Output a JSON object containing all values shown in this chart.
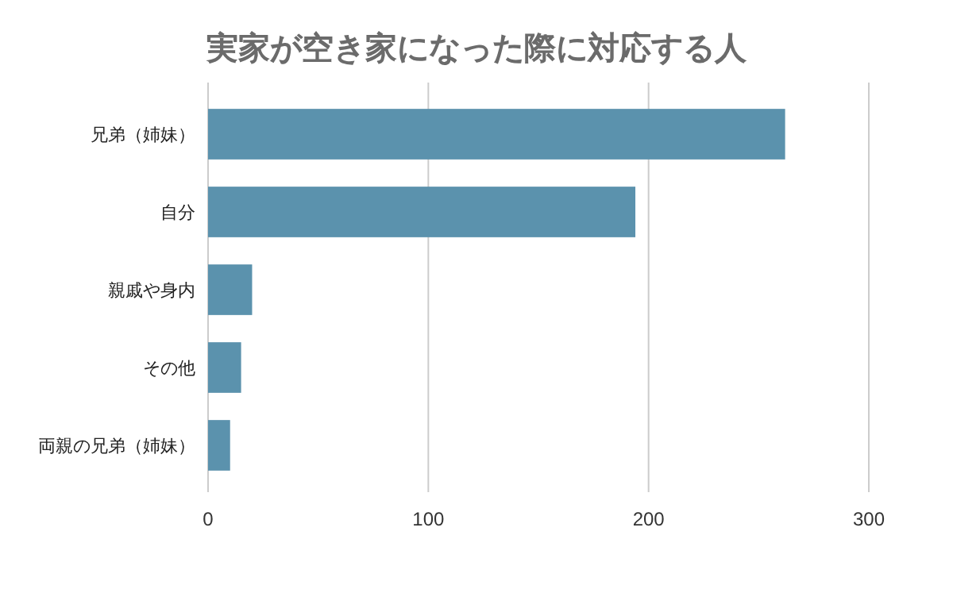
{
  "chart_data": {
    "type": "bar",
    "orientation": "horizontal",
    "title": "実家が空き家になった際に対応する人",
    "categories": [
      "兄弟（姉妹）",
      "自分",
      "親戚や身内",
      "その他",
      "両親の兄弟（姉妹）"
    ],
    "values": [
      262,
      194,
      20,
      15,
      10
    ],
    "color": "#5b92ad",
    "xlim": [
      0,
      300
    ],
    "xticks": [
      0,
      100,
      200,
      300
    ],
    "grid": "x"
  }
}
